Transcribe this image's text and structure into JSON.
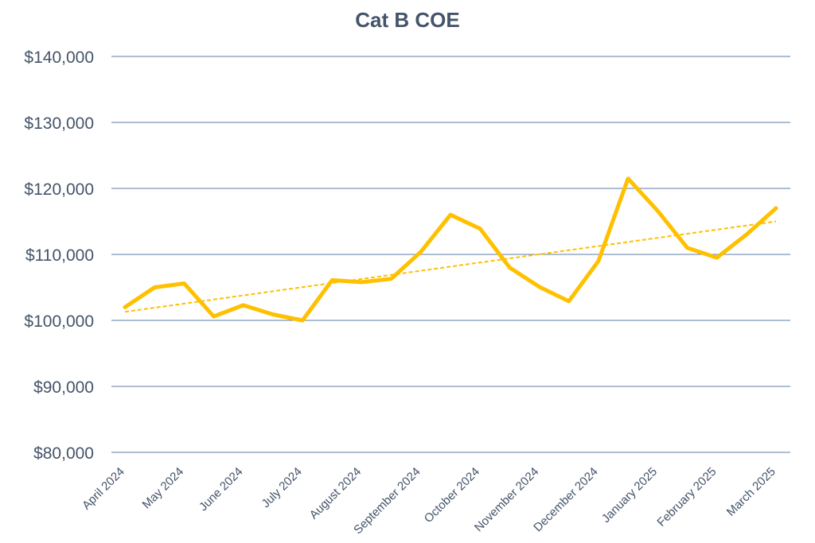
{
  "chart_data": {
    "type": "line",
    "title": "Cat B COE",
    "xlabel": "",
    "ylabel": "",
    "ylim": [
      80000,
      140000
    ],
    "y_ticks": [
      80000,
      90000,
      100000,
      110000,
      120000,
      130000,
      140000
    ],
    "y_tick_labels": [
      "$80,000",
      "$90,000",
      "$100,000",
      "$110,000",
      "$120,000",
      "$130,000",
      "$140,000"
    ],
    "x_tick_labels": [
      "April 2024",
      "May 2024",
      "June 2024",
      "July 2024",
      "August 2024",
      "September 2024",
      "October 2024",
      "November 2024",
      "December 2024",
      "January 2025",
      "February 2025",
      "March 2025"
    ],
    "grid": true,
    "legend": "none",
    "series": [
      {
        "color": "#ffc000",
        "values": [
          102000,
          105000,
          105600,
          100600,
          102300,
          100900,
          100000,
          106100,
          105800,
          106300,
          110400,
          116000,
          113900,
          108000,
          105100,
          102900,
          109000,
          121500,
          116600,
          111000,
          109500,
          113000,
          117000
        ]
      }
    ],
    "trendline": {
      "style": "dashed",
      "color": "#ffc000",
      "start": 101300,
      "end": 115000
    }
  }
}
